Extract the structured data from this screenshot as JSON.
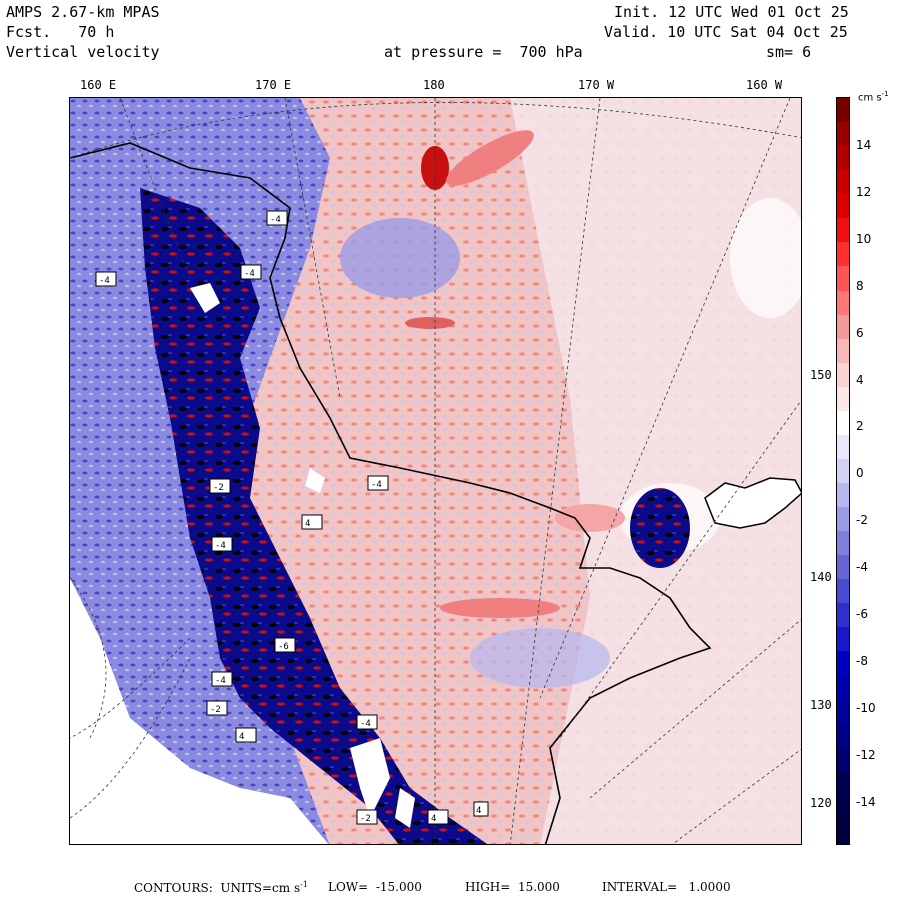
{
  "header": {
    "model": "AMPS 2.67-km MPAS",
    "fcst_label": "Fcst.",
    "fcst_value": "70 h",
    "field": "Vertical velocity",
    "init": "Init. 12 UTC Wed 01 Oct 25",
    "valid": "Valid. 10 UTC Sat 04 Oct 25",
    "level": "at pressure =  700 hPa",
    "smooth": "sm= 6"
  },
  "map": {
    "lon_top": [
      "160 E",
      "170 E",
      "180",
      "170 W",
      "160 W"
    ],
    "lon_right": [
      "150 W",
      "140 W",
      "130 W",
      "120 W"
    ],
    "box_labels": [
      "-4",
      "-4",
      "-4",
      "-4",
      "-2",
      "4",
      "-4",
      "-6",
      "-4",
      "-2",
      "4",
      "-4",
      "-2",
      "4",
      "4"
    ]
  },
  "colorbar": {
    "unit": "cm s",
    "unit_exp": "-1",
    "ticks": [
      "14",
      "12",
      "10",
      "8",
      "6",
      "4",
      "2",
      "0",
      "-2",
      "-4",
      "-6",
      "-8",
      "-10",
      "-12",
      "-14"
    ],
    "colors": [
      "#7a0000",
      "#990000",
      "#b00000",
      "#c80000",
      "#dd0000",
      "#f01010",
      "#ff3030",
      "#ff5555",
      "#ff7878",
      "#f49a9a",
      "#f7b8b8",
      "#fad2d2",
      "#fde8e8",
      "#ffffff",
      "#e8e8fa",
      "#d2d2f5",
      "#b8b8ee",
      "#9b9be6",
      "#7f7fdc",
      "#6565d6",
      "#4a4ad0",
      "#3030cc",
      "#1818c8",
      "#0000c0",
      "#0000a8",
      "#00009a",
      "#000088",
      "#000070",
      "#000055",
      "#00004a",
      "#000040"
    ]
  },
  "footer": {
    "contours": "CONTOURS:  UNITS=cm s",
    "exp": "-1",
    "low": "LOW=  -15.000",
    "high": "HIGH=  15.000",
    "interval": "INTERVAL=   1.0000"
  },
  "colors": {
    "positive": "#f4a6a6",
    "negative": "#7878d8",
    "strong_neg": "#00008b",
    "strong_pos": "#b40000"
  }
}
